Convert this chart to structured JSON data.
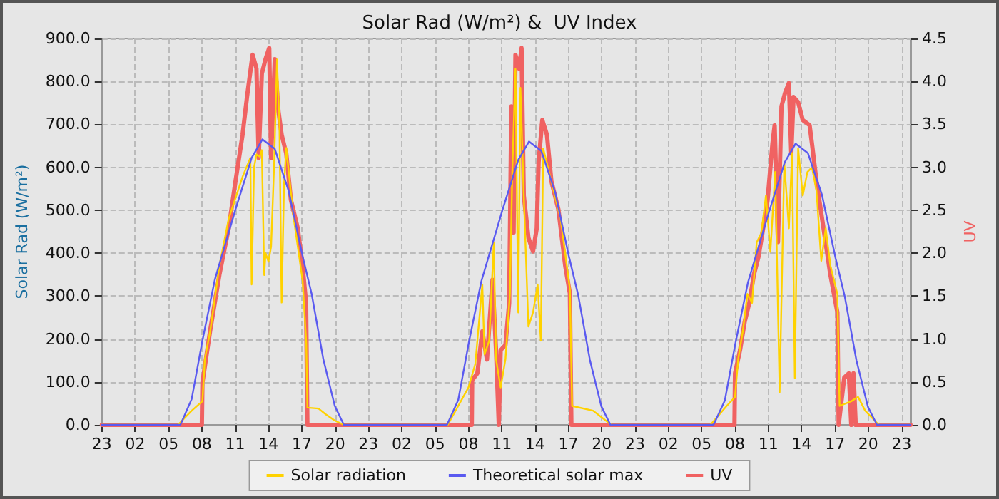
{
  "chart_data": {
    "type": "line",
    "title": "Solar Rad (W/m²) &  UV Index",
    "ylabel": "Solar Rad (W/m²)",
    "y2label": "UV",
    "xlim": [
      "--01-01T23:00",
      "--01-04T23:48"
    ],
    "ylim": [
      0,
      900
    ],
    "y2lim": [
      0,
      4.5
    ],
    "xticks": [
      {
        "value": "--01-01T23:00",
        "label": "23"
      },
      {
        "value": "--01-02T02:00",
        "label": "02"
      },
      {
        "value": "--01-02T05:00",
        "label": "05"
      },
      {
        "value": "--01-02T08:00",
        "label": "08"
      },
      {
        "value": "--01-02T11:00",
        "label": "11"
      },
      {
        "value": "--01-02T14:00",
        "label": "14"
      },
      {
        "value": "--01-02T17:00",
        "label": "17"
      },
      {
        "value": "--01-02T20:00",
        "label": "20"
      },
      {
        "value": "--01-02T23:00",
        "label": "23"
      },
      {
        "value": "--01-03T02:00",
        "label": "02"
      },
      {
        "value": "--01-03T05:00",
        "label": "05"
      },
      {
        "value": "--01-03T08:00",
        "label": "08"
      },
      {
        "value": "--01-03T11:00",
        "label": "11"
      },
      {
        "value": "--01-03T14:00",
        "label": "14"
      },
      {
        "value": "--01-03T17:00",
        "label": "17"
      },
      {
        "value": "--01-03T20:00",
        "label": "20"
      },
      {
        "value": "--01-03T23:00",
        "label": "23"
      },
      {
        "value": "--01-04T02:00",
        "label": "02"
      },
      {
        "value": "--01-04T05:00",
        "label": "05"
      },
      {
        "value": "--01-04T08:00",
        "label": "08"
      },
      {
        "value": "--01-04T11:00",
        "label": "11"
      },
      {
        "value": "--01-04T14:00",
        "label": "14"
      },
      {
        "value": "--01-04T17:00",
        "label": "17"
      },
      {
        "value": "--01-04T20:00",
        "label": "20"
      },
      {
        "value": "--01-04T23:00",
        "label": "23"
      }
    ],
    "yticks": [
      {
        "value": 0,
        "label": "0.0"
      },
      {
        "value": 100,
        "label": "100.0"
      },
      {
        "value": 200,
        "label": "200.0"
      },
      {
        "value": 300,
        "label": "300.0"
      },
      {
        "value": 400,
        "label": "400.0"
      },
      {
        "value": 500,
        "label": "500.0"
      },
      {
        "value": 600,
        "label": "600.0"
      },
      {
        "value": 700,
        "label": "700.0"
      },
      {
        "value": 800,
        "label": "800.0"
      },
      {
        "value": 900,
        "label": "900.0"
      }
    ],
    "y2ticks": [
      {
        "value": 0,
        "label": "0.0"
      },
      {
        "value": 0.5,
        "label": "0.5"
      },
      {
        "value": 1,
        "label": "1.0"
      },
      {
        "value": 1.5,
        "label": "1.5"
      },
      {
        "value": 2,
        "label": "2.0"
      },
      {
        "value": 2.5,
        "label": "2.5"
      },
      {
        "value": 3,
        "label": "3.0"
      },
      {
        "value": 3.5,
        "label": "3.5"
      },
      {
        "value": 4,
        "label": "4.0"
      },
      {
        "value": 4.5,
        "label": "4.5"
      }
    ],
    "grid": true,
    "legend": "bottom",
    "marker": "none",
    "line_style": "solid",
    "series": [
      {
        "name": "Solar radiation",
        "color": "#ffd200",
        "x": [
          "--01-01T23:00",
          "--01-02T05:51",
          "--01-02T07:05",
          "--01-02T08:03",
          "--01-02T08:16",
          "--01-02T08:45",
          "--01-02T09:35",
          "--01-02T10:25",
          "--01-02T11:40",
          "--01-02T12:22",
          "--01-02T12:29",
          "--01-02T12:42",
          "--01-02T12:55",
          "--01-02T13:12",
          "--01-02T13:24",
          "--01-02T13:37",
          "--01-02T13:44",
          "--01-02T14:00",
          "--01-02T14:14",
          "--01-02T14:30",
          "--01-02T14:46",
          "--01-02T14:59",
          "--01-02T15:11",
          "--01-02T15:24",
          "--01-02T15:36",
          "--01-02T16:13",
          "--01-02T17:04",
          "--01-02T17:24",
          "--01-02T17:30",
          "--01-02T18:30",
          "--01-02T19:08",
          "--01-02T19:58",
          "--01-02T20:47",
          "--01-03T06:08",
          "--01-03T08:00",
          "--01-03T08:37",
          "--01-03T09:15",
          "--01-03T09:27",
          "--01-03T09:52",
          "--01-03T10:17",
          "--01-03T10:29",
          "--01-03T10:54",
          "--01-03T11:20",
          "--01-03T11:44",
          "--01-03T11:57",
          "--01-03T12:14",
          "--01-03T12:29",
          "--01-03T12:41",
          "--01-03T12:59",
          "--01-03T13:24",
          "--01-03T13:49",
          "--01-03T14:14",
          "--01-03T14:31",
          "--01-03T14:44",
          "--01-03T15:28",
          "--01-03T16:18",
          "--01-03T17:08",
          "--01-03T17:20",
          "--01-03T19:13",
          "--01-03T20:52",
          "--01-04T05:47",
          "--01-04T07:15",
          "--01-04T08:00",
          "--01-04T08:17",
          "--01-04T08:42",
          "--01-04T09:07",
          "--01-04T09:32",
          "--01-04T09:57",
          "--01-04T10:22",
          "--01-04T10:47",
          "--01-04T11:11",
          "--01-04T11:37",
          "--01-04T12:01",
          "--01-04T12:26",
          "--01-04T12:51",
          "--01-04T13:08",
          "--01-04T13:23",
          "--01-04T13:41",
          "--01-04T14:06",
          "--01-04T14:31",
          "--01-04T14:56",
          "--01-04T15:20",
          "--01-04T15:46",
          "--01-04T16:10",
          "--01-04T16:35",
          "--01-04T17:13",
          "--01-04T17:25",
          "--01-04T18:28",
          "--01-04T19:05",
          "--01-04T19:43",
          "--01-04T20:57",
          "--01-04T23:48"
        ],
        "values": [
          0,
          0,
          33,
          55,
          153,
          218,
          371,
          480,
          578,
          622,
          327,
          600,
          630,
          625,
          640,
          349,
          400,
          380,
          415,
          600,
          851,
          700,
          285,
          560,
          645,
          491,
          337,
          190,
          40,
          38,
          25,
          10,
          0,
          0,
          87,
          142,
          327,
          164,
          196,
          425,
          153,
          87,
          153,
          305,
          589,
          829,
          262,
          785,
          534,
          229,
          262,
          327,
          196,
          644,
          567,
          480,
          316,
          44,
          33,
          0,
          0,
          44,
          65,
          153,
          218,
          305,
          284,
          425,
          447,
          534,
          403,
          589,
          76,
          611,
          458,
          633,
          109,
          644,
          534,
          589,
          600,
          545,
          382,
          458,
          371,
          305,
          44,
          55,
          65,
          33,
          0,
          0
        ]
      },
      {
        "name": "Theoretical solar max",
        "color": "#5a5af0",
        "x": [
          "--01-01T23:00",
          "--01-02T06:04",
          "--01-02T07:05",
          "--01-02T08:03",
          "--01-02T09:10",
          "--01-02T11:02",
          "--01-02T12:29",
          "--01-02T13:27",
          "--01-02T14:34",
          "--01-02T15:49",
          "--01-02T17:04",
          "--01-02T17:53",
          "--01-02T18:56",
          "--01-02T19:58",
          "--01-02T20:47",
          "--01-03T06:04",
          "--01-03T07:05",
          "--01-03T08:03",
          "--01-03T09:10",
          "--01-03T11:02",
          "--01-03T12:29",
          "--01-03T13:27",
          "--01-03T14:34",
          "--01-03T15:49",
          "--01-03T17:04",
          "--01-03T17:53",
          "--01-03T18:56",
          "--01-03T19:58",
          "--01-03T20:47",
          "--01-04T06:04",
          "--01-04T07:05",
          "--01-04T08:03",
          "--01-04T09:10",
          "--01-04T11:02",
          "--01-04T12:29",
          "--01-04T13:27",
          "--01-04T14:34",
          "--01-04T15:49",
          "--01-04T17:04",
          "--01-04T17:53",
          "--01-04T18:56",
          "--01-04T19:58",
          "--01-04T20:47",
          "--01-04T23:48"
        ],
        "values": [
          0,
          0,
          60,
          196,
          338,
          502,
          622,
          665,
          643,
          545,
          393,
          305,
          153,
          44,
          0,
          0,
          58,
          194,
          335,
          498,
          617,
          660,
          638,
          541,
          390,
          302,
          151,
          43,
          0,
          0,
          57,
          192,
          332,
          494,
          612,
          655,
          633,
          537,
          387,
          299,
          150,
          42,
          0,
          0
        ]
      },
      {
        "name": "UV",
        "color": "#f06262",
        "axis": "y2",
        "x": [
          "--01-01T23:00",
          "--01-02T08:00",
          "--01-02T08:03",
          "--01-02T08:45",
          "--01-02T09:35",
          "--01-02T10:25",
          "--01-02T11:02",
          "--01-02T11:40",
          "--01-02T12:04",
          "--01-02T12:34",
          "--01-02T12:55",
          "--01-02T13:07",
          "--01-02T13:24",
          "--01-02T13:44",
          "--01-02T14:04",
          "--01-02T14:14",
          "--01-02T14:34",
          "--01-02T14:54",
          "--01-02T15:11",
          "--01-02T15:36",
          "--01-02T16:01",
          "--01-02T16:38",
          "--01-02T17:04",
          "--01-02T17:23",
          "--01-02T17:30",
          "--01-03T08:18",
          "--01-03T08:20",
          "--01-03T08:48",
          "--01-03T09:15",
          "--01-03T09:40",
          "--01-03T10:10",
          "--01-03T10:29",
          "--01-03T10:44",
          "--01-03T10:54",
          "--01-03T11:20",
          "--01-03T11:40",
          "--01-03T11:52",
          "--01-03T12:04",
          "--01-03T12:14",
          "--01-03T12:34",
          "--01-03T12:47",
          "--01-03T12:59",
          "--01-03T13:24",
          "--01-03T13:49",
          "--01-03T14:09",
          "--01-03T14:19",
          "--01-03T14:39",
          "--01-03T15:04",
          "--01-03T15:28",
          "--01-03T16:06",
          "--01-03T16:43",
          "--01-03T17:08",
          "--01-03T17:16",
          "--01-04T07:57",
          "--01-04T08:00",
          "--01-04T08:27",
          "--01-04T08:52",
          "--01-04T09:17",
          "--01-04T09:42",
          "--01-04T10:07",
          "--01-04T10:32",
          "--01-04T10:56",
          "--01-04T11:22",
          "--01-04T11:34",
          "--01-04T11:52",
          "--01-04T12:11",
          "--01-04T12:31",
          "--01-04T12:51",
          "--01-04T13:04",
          "--01-04T13:16",
          "--01-04T13:41",
          "--01-04T14:06",
          "--01-04T14:43",
          "--01-04T14:56",
          "--01-04T15:20",
          "--01-04T15:58",
          "--01-04T16:35",
          "--01-04T17:13",
          "--01-04T17:20",
          "--01-04T17:50",
          "--01-04T18:15",
          "--01-04T18:28",
          "--01-04T18:40",
          "--01-04T18:52",
          "--01-04T23:48"
        ],
        "values": [
          0,
          0,
          0.49,
          1.1,
          1.75,
          2.29,
          2.84,
          3.38,
          3.82,
          4.31,
          4.15,
          3.11,
          4.09,
          4.26,
          4.39,
          3.11,
          4.26,
          3.65,
          3.38,
          3.16,
          2.62,
          2.29,
          1.85,
          1.42,
          0,
          0,
          0.52,
          0.6,
          1.09,
          0.76,
          1.69,
          0.87,
          0,
          0.87,
          0.93,
          1.42,
          3.71,
          2.24,
          4.31,
          4.15,
          4.39,
          2.67,
          2.18,
          2.02,
          2.29,
          3.06,
          3.55,
          3.38,
          2.84,
          2.51,
          1.85,
          1.53,
          0,
          0,
          0.6,
          0.87,
          1.2,
          1.42,
          1.75,
          1.96,
          2.29,
          2.62,
          3.27,
          3.49,
          2.13,
          3.71,
          3.87,
          3.98,
          3.16,
          3.82,
          3.76,
          3.55,
          3.49,
          3.27,
          2.84,
          2.29,
          1.75,
          1.31,
          0,
          0.55,
          0.6,
          0,
          0.6,
          0,
          0
        ]
      }
    ]
  }
}
